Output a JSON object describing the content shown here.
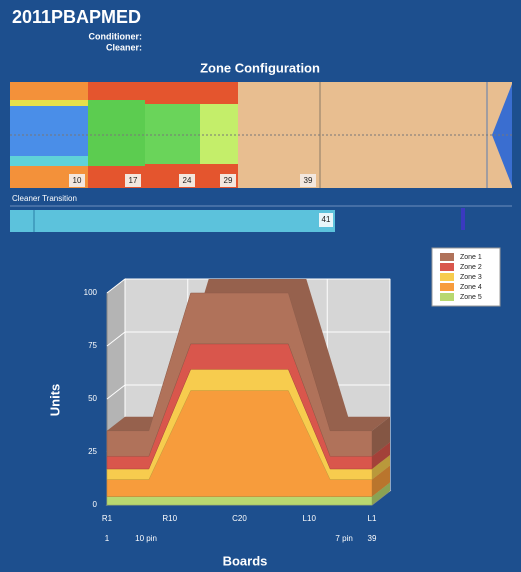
{
  "header": {
    "title": "2011PBAPMED",
    "conditioner_label": "Conditioner:",
    "cleaner_label": "Cleaner:"
  },
  "zone_configuration": {
    "title": "Zone Configuration",
    "boundaries": [
      10,
      17,
      24,
      29,
      39
    ]
  },
  "cleaner_transition": {
    "label": "Cleaner Transition",
    "value": 41
  },
  "chart_data": {
    "type": "area",
    "stacked": true,
    "xlabel": "Boards",
    "ylabel": "Units",
    "x": [
      1,
      7,
      13,
      27,
      33,
      39
    ],
    "xlim": [
      1,
      39
    ],
    "xticks": [
      {
        "value": 1,
        "label": "R1"
      },
      {
        "value": 10,
        "label": "R10"
      },
      {
        "value": 20,
        "label": "C20"
      },
      {
        "value": 30,
        "label": "L10"
      },
      {
        "value": 39,
        "label": "L1"
      }
    ],
    "ylim": [
      0,
      100
    ],
    "yticks": [
      0,
      25,
      50,
      75,
      100
    ],
    "grid": true,
    "legend": "upper right",
    "annotations": [
      {
        "x": 1,
        "text": "1"
      },
      {
        "x": 6.6,
        "text": "10 pin"
      },
      {
        "x": 35,
        "text": "7 pin"
      },
      {
        "x": 39,
        "text": "39"
      }
    ],
    "series": [
      {
        "name": "Zone 1",
        "color": "#b0725a",
        "values": [
          12,
          12,
          24,
          24,
          12,
          12
        ]
      },
      {
        "name": "Zone 2",
        "color": "#d9564c",
        "values": [
          6,
          6,
          12,
          12,
          6,
          6
        ]
      },
      {
        "name": "Zone 3",
        "color": "#f7cc4e",
        "values": [
          5,
          5,
          10,
          10,
          5,
          5
        ]
      },
      {
        "name": "Zone 4",
        "color": "#f79c3c",
        "values": [
          8,
          8,
          50,
          50,
          8,
          8
        ]
      },
      {
        "name": "Zone 5",
        "color": "#b8d870",
        "values": [
          4,
          4,
          4,
          4,
          4,
          4
        ]
      }
    ]
  }
}
